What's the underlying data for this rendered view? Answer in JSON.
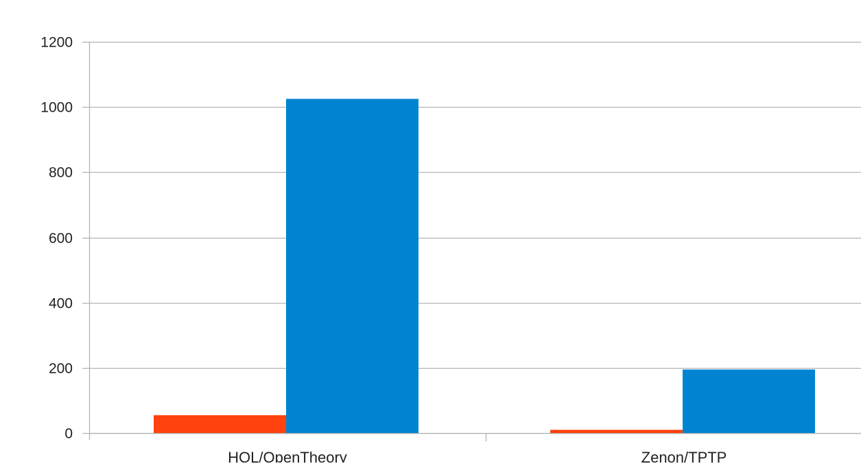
{
  "chart_data": {
    "type": "bar",
    "title": "",
    "xlabel": "",
    "ylabel": "",
    "categories": [
      "HOL/OpenTheory",
      "Zenon/TPTP"
    ],
    "series": [
      {
        "values": [
          55,
          10
        ],
        "color": "#ff420e"
      },
      {
        "values": [
          1025,
          195
        ],
        "color": "#0084d1"
      }
    ],
    "ylim": [
      0,
      1200
    ],
    "yticks": [
      0,
      200,
      400,
      600,
      800,
      1000,
      1200
    ],
    "grid": true,
    "legend": "none"
  },
  "colors": {
    "gridline": "#b3b3b3",
    "axis": "#b3b3b3"
  }
}
